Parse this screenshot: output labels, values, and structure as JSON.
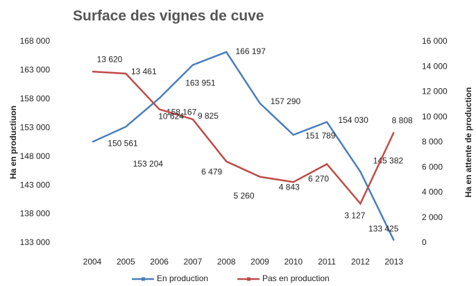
{
  "chart_data": {
    "type": "line",
    "title": "Surface des vignes de cuve",
    "y_label": "Ha en productiuon",
    "y2_label": "Ha en attente de production",
    "categories": [
      "2004",
      "2005",
      "2006",
      "2007",
      "2008",
      "2009",
      "2010",
      "2011",
      "2012",
      "2013"
    ],
    "series": [
      {
        "name": "En production",
        "color": "#4a7ebb",
        "values": [
          150561,
          153204,
          158167,
          163951,
          166197,
          157290,
          151789,
          154030,
          145382,
          133425
        ],
        "value_labels": [
          "150 561",
          "153 204",
          "158 167",
          "163 951",
          "166 197",
          "157 290",
          "151 789",
          "154 030",
          "145 382",
          "133 425"
        ]
      },
      {
        "name": "Pas en production",
        "color": "#be4b48",
        "axis": "y2",
        "values": [
          13620,
          13461,
          10624,
          9825,
          6479,
          5260,
          4843,
          6270,
          3127,
          8808
        ],
        "value_labels": [
          "13 620",
          "13 461",
          "10 624",
          "9 825",
          "6 479",
          "5 260",
          "4 843",
          "6 270",
          "3 127",
          "8 808"
        ]
      }
    ],
    "ylim": [
      133000,
      168000
    ],
    "yticks": [
      {
        "value": 133000,
        "label": "133 000"
      },
      {
        "value": 138000,
        "label": "138 000"
      },
      {
        "value": 143000,
        "label": "143 000"
      },
      {
        "value": 148000,
        "label": "148 000"
      },
      {
        "value": 153000,
        "label": "153 000"
      },
      {
        "value": 158000,
        "label": "158 000"
      },
      {
        "value": 163000,
        "label": "163 000"
      },
      {
        "value": 168000,
        "label": "168 000"
      }
    ],
    "y2lim": [
      0,
      16000
    ],
    "y2ticks": [
      0,
      {
        "value": 2000,
        "label": "2 000"
      },
      {
        "value": 4000,
        "label": "4 000"
      },
      {
        "value": 6000,
        "label": "6 000"
      },
      {
        "value": 8000,
        "label": "8 000"
      },
      {
        "value": 10000,
        "label": "10 000"
      },
      {
        "value": 12000,
        "label": "12 000"
      },
      {
        "value": 14000,
        "label": "14 000"
      },
      {
        "value": 16000,
        "label": "16 000"
      }
    ],
    "grid": false,
    "legend": "bottom"
  }
}
